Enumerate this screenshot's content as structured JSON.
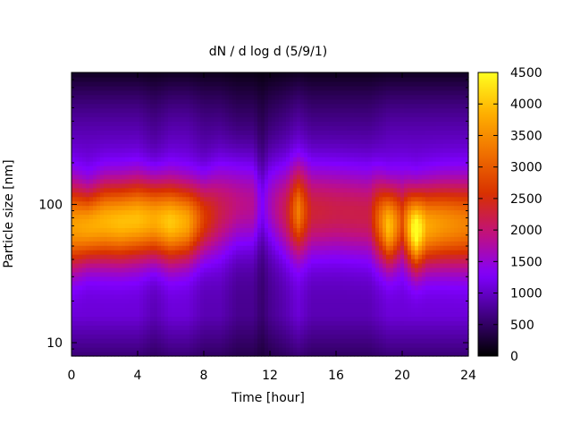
{
  "chart_data": {
    "type": "heatmap",
    "title": "dN / d log d (5/9/1)",
    "xlabel": "Time [hour]",
    "ylabel": "Particle size [nm]",
    "x_range": [
      0,
      24
    ],
    "x_ticks": [
      0,
      4,
      8,
      12,
      16,
      20,
      24
    ],
    "y_scale": "log",
    "y_range": [
      8,
      900
    ],
    "y_tick_labels": [
      "10",
      "100"
    ],
    "y_ticks": [
      10,
      100
    ],
    "colorbar": {
      "range": [
        0,
        4500
      ],
      "ticks": [
        0,
        500,
        1000,
        1500,
        2000,
        2500,
        3000,
        3500,
        4000,
        4500
      ],
      "palette": [
        "#000000",
        "#400080",
        "#8000ff",
        "#c01080",
        "#d83000",
        "#f07000",
        "#ffb000",
        "#ffff20"
      ]
    },
    "grid": false,
    "time_profile": [
      {
        "t": 0.0,
        "peak_size_nm": 70,
        "peak_value": 2600,
        "width": 0.3,
        "floor": 300
      },
      {
        "t": 1.0,
        "peak_size_nm": 70,
        "peak_value": 2700,
        "width": 0.26,
        "floor": 300
      },
      {
        "t": 2.0,
        "peak_size_nm": 75,
        "peak_value": 2800,
        "width": 0.28,
        "floor": 300
      },
      {
        "t": 3.0,
        "peak_size_nm": 75,
        "peak_value": 2900,
        "width": 0.28,
        "floor": 300
      },
      {
        "t": 4.0,
        "peak_size_nm": 78,
        "peak_value": 2900,
        "width": 0.28,
        "floor": 300
      },
      {
        "t": 5.0,
        "peak_size_nm": 78,
        "peak_value": 2900,
        "width": 0.28,
        "floor": 250
      },
      {
        "t": 6.0,
        "peak_size_nm": 75,
        "peak_value": 3000,
        "width": 0.28,
        "floor": 300
      },
      {
        "t": 7.0,
        "peak_size_nm": 75,
        "peak_value": 2700,
        "width": 0.27,
        "floor": 300
      },
      {
        "t": 8.0,
        "peak_size_nm": 80,
        "peak_value": 1800,
        "width": 0.28,
        "floor": 250
      },
      {
        "t": 9.0,
        "peak_size_nm": 90,
        "peak_value": 1300,
        "width": 0.32,
        "floor": 250
      },
      {
        "t": 10.0,
        "peak_size_nm": 100,
        "peak_value": 1200,
        "width": 0.33,
        "floor": 200
      },
      {
        "t": 11.0,
        "peak_size_nm": 100,
        "peak_value": 1100,
        "width": 0.33,
        "floor": 200
      },
      {
        "t": 11.5,
        "peak_size_nm": 100,
        "peak_value": 700,
        "width": 0.3,
        "floor": 150
      },
      {
        "t": 12.0,
        "peak_size_nm": 100,
        "peak_value": 900,
        "width": 0.32,
        "floor": 200
      },
      {
        "t": 13.0,
        "peak_size_nm": 90,
        "peak_value": 1300,
        "width": 0.32,
        "floor": 250
      },
      {
        "t": 13.7,
        "peak_size_nm": 90,
        "peak_value": 2300,
        "width": 0.3,
        "floor": 300
      },
      {
        "t": 14.5,
        "peak_size_nm": 90,
        "peak_value": 1400,
        "width": 0.32,
        "floor": 250
      },
      {
        "t": 16.0,
        "peak_size_nm": 90,
        "peak_value": 1300,
        "width": 0.32,
        "floor": 250
      },
      {
        "t": 18.0,
        "peak_size_nm": 85,
        "peak_value": 1300,
        "width": 0.32,
        "floor": 250
      },
      {
        "t": 19.2,
        "peak_size_nm": 70,
        "peak_value": 3000,
        "width": 0.27,
        "floor": 300
      },
      {
        "t": 20.0,
        "peak_size_nm": 75,
        "peak_value": 1800,
        "width": 0.28,
        "floor": 300
      },
      {
        "t": 20.8,
        "peak_size_nm": 65,
        "peak_value": 3700,
        "width": 0.27,
        "floor": 300
      },
      {
        "t": 21.5,
        "peak_size_nm": 70,
        "peak_value": 2700,
        "width": 0.28,
        "floor": 300
      },
      {
        "t": 22.5,
        "peak_size_nm": 72,
        "peak_value": 2500,
        "width": 0.29,
        "floor": 300
      },
      {
        "t": 24.0,
        "peak_size_nm": 72,
        "peak_value": 2300,
        "width": 0.3,
        "floor": 300
      }
    ]
  }
}
